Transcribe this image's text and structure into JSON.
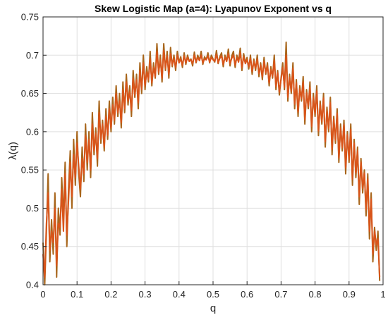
{
  "chart_data": {
    "type": "line",
    "title": "Skew Logistic Map (a=4): Lyapunov Exponent vs q",
    "xlabel": "q",
    "ylabel": "λ(q)",
    "xlim": [
      0,
      1
    ],
    "ylim": [
      0.4,
      0.75
    ],
    "x_ticks": [
      "0",
      "0.1",
      "0.2",
      "0.3",
      "0.4",
      "0.5",
      "0.6",
      "0.7",
      "0.8",
      "0.9",
      "1"
    ],
    "y_ticks": [
      "0.4",
      "0.45",
      "0.5",
      "0.55",
      "0.6",
      "0.65",
      "0.7",
      "0.75"
    ],
    "grid": true,
    "series": [
      {
        "color": "#a8661c",
        "x": [
          0.0,
          0.005,
          0.01,
          0.015,
          0.02,
          0.025,
          0.03,
          0.035,
          0.04,
          0.045,
          0.05,
          0.055,
          0.06,
          0.065,
          0.07,
          0.075,
          0.08,
          0.085,
          0.09,
          0.095,
          0.1,
          0.105,
          0.11,
          0.115,
          0.12,
          0.125,
          0.13,
          0.135,
          0.14,
          0.145,
          0.15,
          0.155,
          0.16,
          0.165,
          0.17,
          0.175,
          0.18,
          0.185,
          0.19,
          0.195,
          0.2,
          0.205,
          0.21,
          0.215,
          0.22,
          0.225,
          0.23,
          0.235,
          0.24,
          0.245,
          0.25,
          0.255,
          0.26,
          0.265,
          0.27,
          0.275,
          0.28,
          0.285,
          0.29,
          0.295,
          0.3,
          0.305,
          0.31,
          0.315,
          0.32,
          0.325,
          0.33,
          0.335,
          0.34,
          0.345,
          0.35,
          0.355,
          0.36,
          0.365,
          0.37,
          0.375,
          0.38,
          0.385,
          0.39,
          0.395,
          0.4,
          0.405,
          0.41,
          0.415,
          0.42,
          0.425,
          0.43,
          0.435,
          0.44,
          0.445,
          0.45,
          0.455,
          0.46,
          0.465,
          0.47,
          0.475,
          0.48,
          0.485,
          0.49,
          0.495,
          0.5,
          0.505,
          0.51,
          0.515,
          0.52,
          0.525,
          0.53,
          0.535,
          0.54,
          0.545,
          0.55,
          0.555,
          0.56,
          0.565,
          0.57,
          0.575,
          0.58,
          0.585,
          0.59,
          0.595,
          0.6,
          0.605,
          0.61,
          0.615,
          0.62,
          0.625,
          0.63,
          0.635,
          0.64,
          0.645,
          0.65,
          0.655,
          0.66,
          0.665,
          0.67,
          0.675,
          0.68,
          0.685,
          0.69,
          0.695,
          0.7,
          0.705,
          0.71,
          0.715,
          0.72,
          0.725,
          0.73,
          0.735,
          0.74,
          0.745,
          0.75,
          0.755,
          0.76,
          0.765,
          0.77,
          0.775,
          0.78,
          0.785,
          0.79,
          0.795,
          0.8,
          0.805,
          0.81,
          0.815,
          0.82,
          0.825,
          0.83,
          0.835,
          0.84,
          0.845,
          0.85,
          0.855,
          0.86,
          0.865,
          0.87,
          0.875,
          0.88,
          0.885,
          0.89,
          0.895,
          0.9,
          0.905,
          0.91,
          0.915,
          0.92,
          0.925,
          0.93,
          0.935,
          0.94,
          0.945,
          0.95,
          0.955,
          0.96,
          0.965,
          0.97,
          0.975,
          0.98,
          0.985,
          0.99
        ],
        "y": [
          0.455,
          0.395,
          0.47,
          0.545,
          0.43,
          0.485,
          0.44,
          0.52,
          0.41,
          0.5,
          0.465,
          0.54,
          0.485,
          0.56,
          0.45,
          0.525,
          0.575,
          0.5,
          0.59,
          0.53,
          0.6,
          0.545,
          0.515,
          0.58,
          0.535,
          0.61,
          0.55,
          0.6,
          0.54,
          0.625,
          0.57,
          0.605,
          0.555,
          0.64,
          0.585,
          0.615,
          0.575,
          0.63,
          0.59,
          0.64,
          0.6,
          0.645,
          0.61,
          0.66,
          0.62,
          0.65,
          0.605,
          0.665,
          0.625,
          0.675,
          0.635,
          0.66,
          0.62,
          0.68,
          0.645,
          0.675,
          0.63,
          0.69,
          0.65,
          0.7,
          0.655,
          0.685,
          0.665,
          0.705,
          0.66,
          0.69,
          0.67,
          0.715,
          0.675,
          0.7,
          0.665,
          0.715,
          0.68,
          0.705,
          0.67,
          0.71,
          0.685,
          0.7,
          0.68,
          0.705,
          0.69,
          0.698,
          0.684,
          0.703,
          0.688,
          0.7,
          0.692,
          0.695,
          0.686,
          0.704,
          0.69,
          0.7,
          0.693,
          0.705,
          0.688,
          0.698,
          0.694,
          0.703,
          0.69,
          0.7,
          0.695,
          0.691,
          0.706,
          0.689,
          0.698,
          0.703,
          0.685,
          0.7,
          0.692,
          0.708,
          0.686,
          0.699,
          0.705,
          0.684,
          0.7,
          0.692,
          0.709,
          0.68,
          0.702,
          0.69,
          0.697,
          0.682,
          0.7,
          0.675,
          0.695,
          0.68,
          0.7,
          0.672,
          0.69,
          0.668,
          0.697,
          0.675,
          0.69,
          0.66,
          0.685,
          0.67,
          0.7,
          0.655,
          0.68,
          0.648,
          0.67,
          0.69,
          0.655,
          0.717,
          0.64,
          0.675,
          0.65,
          0.69,
          0.63,
          0.668,
          0.62,
          0.66,
          0.64,
          0.672,
          0.61,
          0.655,
          0.63,
          0.665,
          0.6,
          0.65,
          0.62,
          0.66,
          0.595,
          0.64,
          0.61,
          0.65,
          0.58,
          0.632,
          0.6,
          0.645,
          0.57,
          0.62,
          0.585,
          0.63,
          0.56,
          0.61,
          0.575,
          0.615,
          0.545,
          0.6,
          0.56,
          0.61,
          0.53,
          0.59,
          0.54,
          0.58,
          0.505,
          0.565,
          0.52,
          0.55,
          0.49,
          0.545,
          0.46,
          0.52,
          0.43,
          0.475,
          0.445,
          0.47,
          0.405
        ]
      },
      {
        "color": "#d9541a",
        "x": [
          0.0,
          0.005,
          0.01,
          0.015,
          0.02,
          0.025,
          0.03,
          0.035,
          0.04,
          0.045,
          0.05,
          0.055,
          0.06,
          0.065,
          0.07,
          0.075,
          0.08,
          0.085,
          0.09,
          0.095,
          0.1,
          0.105,
          0.11,
          0.115,
          0.12,
          0.125,
          0.13,
          0.135,
          0.14,
          0.145,
          0.15,
          0.155,
          0.16,
          0.165,
          0.17,
          0.175,
          0.18,
          0.185,
          0.19,
          0.195,
          0.2,
          0.205,
          0.21,
          0.215,
          0.22,
          0.225,
          0.23,
          0.235,
          0.24,
          0.245,
          0.25,
          0.255,
          0.26,
          0.265,
          0.27,
          0.275,
          0.28,
          0.285,
          0.29,
          0.295,
          0.3,
          0.305,
          0.31,
          0.315,
          0.32,
          0.325,
          0.33,
          0.335,
          0.34,
          0.345,
          0.35,
          0.355,
          0.36,
          0.365,
          0.37,
          0.375,
          0.38,
          0.385,
          0.39,
          0.395,
          0.4,
          0.405,
          0.41,
          0.415,
          0.42,
          0.425,
          0.43,
          0.435,
          0.44,
          0.445,
          0.45,
          0.455,
          0.46,
          0.465,
          0.47,
          0.475,
          0.48,
          0.485,
          0.49,
          0.495,
          0.5,
          0.505,
          0.51,
          0.515,
          0.52,
          0.525,
          0.53,
          0.535,
          0.54,
          0.545,
          0.55,
          0.555,
          0.56,
          0.565,
          0.57,
          0.575,
          0.58,
          0.585,
          0.59,
          0.595,
          0.6,
          0.605,
          0.61,
          0.615,
          0.62,
          0.625,
          0.63,
          0.635,
          0.64,
          0.645,
          0.65,
          0.655,
          0.66,
          0.665,
          0.67,
          0.675,
          0.68,
          0.685,
          0.69,
          0.695,
          0.7,
          0.705,
          0.71,
          0.715,
          0.72,
          0.725,
          0.73,
          0.735,
          0.74,
          0.745,
          0.75,
          0.755,
          0.76,
          0.765,
          0.77,
          0.775,
          0.78,
          0.785,
          0.79,
          0.795,
          0.8,
          0.805,
          0.81,
          0.815,
          0.82,
          0.825,
          0.83,
          0.835,
          0.84,
          0.845,
          0.85,
          0.855,
          0.86,
          0.865,
          0.87,
          0.875,
          0.88,
          0.885,
          0.89,
          0.895,
          0.9,
          0.905,
          0.91,
          0.915,
          0.92,
          0.925,
          0.93,
          0.935,
          0.94,
          0.945,
          0.95,
          0.955,
          0.96,
          0.965,
          0.97,
          0.975,
          0.98,
          0.985,
          0.99
        ],
        "y": [
          0.44,
          0.41,
          0.48,
          0.52,
          0.445,
          0.47,
          0.455,
          0.5,
          0.425,
          0.48,
          0.475,
          0.525,
          0.47,
          0.545,
          0.465,
          0.51,
          0.56,
          0.515,
          0.57,
          0.54,
          0.585,
          0.555,
          0.525,
          0.565,
          0.545,
          0.595,
          0.56,
          0.59,
          0.55,
          0.61,
          0.575,
          0.598,
          0.565,
          0.625,
          0.59,
          0.61,
          0.58,
          0.62,
          0.595,
          0.63,
          0.605,
          0.635,
          0.615,
          0.65,
          0.625,
          0.64,
          0.612,
          0.655,
          0.63,
          0.665,
          0.64,
          0.652,
          0.628,
          0.67,
          0.648,
          0.668,
          0.638,
          0.68,
          0.655,
          0.69,
          0.66,
          0.678,
          0.668,
          0.695,
          0.664,
          0.684,
          0.672,
          0.705,
          0.678,
          0.694,
          0.67,
          0.706,
          0.683,
          0.699,
          0.675,
          0.702,
          0.687,
          0.696,
          0.684,
          0.7,
          0.69,
          0.695,
          0.687,
          0.699,
          0.69,
          0.697,
          0.692,
          0.694,
          0.689,
          0.7,
          0.691,
          0.697,
          0.693,
          0.7,
          0.69,
          0.695,
          0.694,
          0.699,
          0.691,
          0.697,
          0.694,
          0.692,
          0.701,
          0.69,
          0.696,
          0.699,
          0.688,
          0.697,
          0.692,
          0.702,
          0.689,
          0.696,
          0.7,
          0.687,
          0.697,
          0.691,
          0.703,
          0.684,
          0.698,
          0.689,
          0.694,
          0.685,
          0.696,
          0.679,
          0.692,
          0.683,
          0.695,
          0.676,
          0.687,
          0.672,
          0.692,
          0.677,
          0.686,
          0.664,
          0.681,
          0.672,
          0.693,
          0.659,
          0.677,
          0.652,
          0.668,
          0.684,
          0.658,
          0.7,
          0.645,
          0.671,
          0.653,
          0.683,
          0.636,
          0.664,
          0.626,
          0.656,
          0.643,
          0.665,
          0.616,
          0.651,
          0.633,
          0.658,
          0.607,
          0.645,
          0.624,
          0.653,
          0.601,
          0.636,
          0.613,
          0.644,
          0.587,
          0.627,
          0.604,
          0.638,
          0.577,
          0.616,
          0.589,
          0.624,
          0.566,
          0.605,
          0.579,
          0.609,
          0.553,
          0.596,
          0.564,
          0.603,
          0.538,
          0.585,
          0.546,
          0.575,
          0.515,
          0.56,
          0.526,
          0.546,
          0.498,
          0.538,
          0.47,
          0.512,
          0.44,
          0.47,
          0.452,
          0.46,
          0.41
        ]
      }
    ]
  }
}
